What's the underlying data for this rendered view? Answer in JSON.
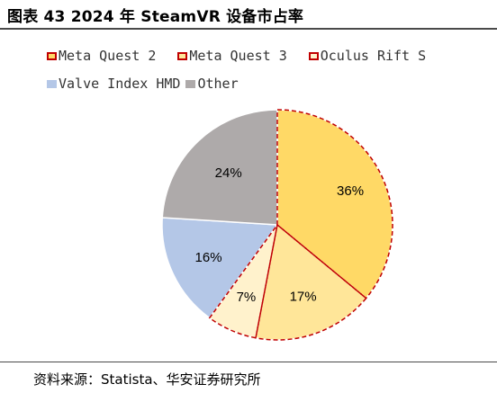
{
  "title": "图表 43 2024 年 SteamVR 设备市占率",
  "source": "资料来源：Statista、华安证券研究所",
  "chart_data": {
    "type": "pie",
    "title": "图表 43 2024 年 SteamVR 设备市占率",
    "legend_position": "top",
    "slices": [
      {
        "name": "Meta Quest 2",
        "value": 36,
        "label": "36%",
        "color": "#FFD966",
        "dashed": true
      },
      {
        "name": "Meta Quest 3",
        "value": 17,
        "label": "17%",
        "color": "#FFE699",
        "dashed": true
      },
      {
        "name": "Oculus Rift S",
        "value": 7,
        "label": "7%",
        "color": "#FFF2CC",
        "dashed": true
      },
      {
        "name": "Valve Index HMD",
        "value": 16,
        "label": "16%",
        "color": "#B4C7E7",
        "dashed": false
      },
      {
        "name": "Other",
        "value": 24,
        "label": "24%",
        "color": "#AEAAAA",
        "dashed": false
      }
    ],
    "dash_color": "#C00000"
  }
}
